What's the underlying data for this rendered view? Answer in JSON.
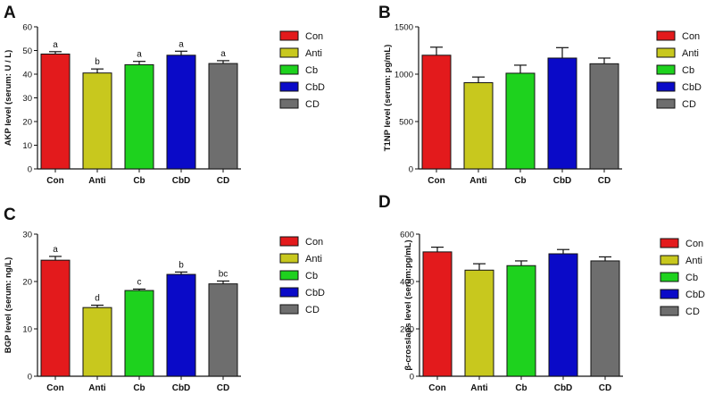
{
  "chart_data": [
    {
      "type": "bar",
      "panel": "A",
      "ylabel": "AKP level (serum: U / L)",
      "categories": [
        "Con",
        "Anti",
        "Cb",
        "CbD",
        "CD"
      ],
      "values": [
        48.5,
        40.5,
        44,
        48,
        44.5
      ],
      "errors": [
        1,
        1.7,
        1.4,
        1.7,
        1.2
      ],
      "letters": [
        "a",
        "b",
        "a",
        "a",
        "a"
      ],
      "colors": [
        "#e31a1c",
        "#c8c81e",
        "#1ed21e",
        "#0a0ac8",
        "#6e6e6e"
      ],
      "ylim": [
        0,
        60
      ],
      "yticks": [
        0,
        10,
        20,
        30,
        40,
        50,
        60
      ],
      "legend": [
        "Con",
        "Anti",
        "Cb",
        "CbD",
        "CD"
      ]
    },
    {
      "type": "bar",
      "panel": "B",
      "ylabel": "T1NP level (serum: pg/mL)",
      "categories": [
        "Con",
        "Anti",
        "Cb",
        "CbD",
        "CD"
      ],
      "values": [
        1200,
        910,
        1010,
        1170,
        1110
      ],
      "errors": [
        85,
        60,
        85,
        110,
        60
      ],
      "letters": [],
      "colors": [
        "#e31a1c",
        "#c8c81e",
        "#1ed21e",
        "#0a0ac8",
        "#6e6e6e"
      ],
      "ylim": [
        0,
        1500
      ],
      "yticks": [
        0,
        500,
        1000,
        1500
      ],
      "legend": [
        "Con",
        "Anti",
        "Cb",
        "CbD",
        "CD"
      ]
    },
    {
      "type": "bar",
      "panel": "C",
      "ylabel": "BGP level (serum: ng/L)",
      "categories": [
        "Con",
        "Anti",
        "Cb",
        "CbD",
        "CD"
      ],
      "values": [
        24.5,
        14.5,
        18.1,
        21.5,
        19.5
      ],
      "errors": [
        0.8,
        0.5,
        0.3,
        0.5,
        0.6
      ],
      "letters": [
        "a",
        "d",
        "c",
        "b",
        "bc"
      ],
      "colors": [
        "#e31a1c",
        "#c8c81e",
        "#1ed21e",
        "#0a0ac8",
        "#6e6e6e"
      ],
      "ylim": [
        0,
        30
      ],
      "yticks": [
        0,
        10,
        20,
        30
      ],
      "legend": [
        "Con",
        "Anti",
        "Cb",
        "CbD",
        "CD"
      ]
    },
    {
      "type": "bar",
      "panel": "D",
      "ylabel": "β-crosslaps level (serum:pg/mL)",
      "categories": [
        "Con",
        "Anti",
        "Cb",
        "CbD",
        "CD"
      ],
      "values": [
        525,
        448,
        467,
        517,
        487
      ],
      "errors": [
        20,
        27,
        20,
        18,
        17
      ],
      "letters": [],
      "colors": [
        "#e31a1c",
        "#c8c81e",
        "#1ed21e",
        "#0a0ac8",
        "#6e6e6e"
      ],
      "ylim": [
        0,
        600
      ],
      "yticks": [
        0,
        200,
        400,
        600
      ],
      "legend": [
        "Con",
        "Anti",
        "Cb",
        "CbD",
        "CD"
      ]
    }
  ]
}
